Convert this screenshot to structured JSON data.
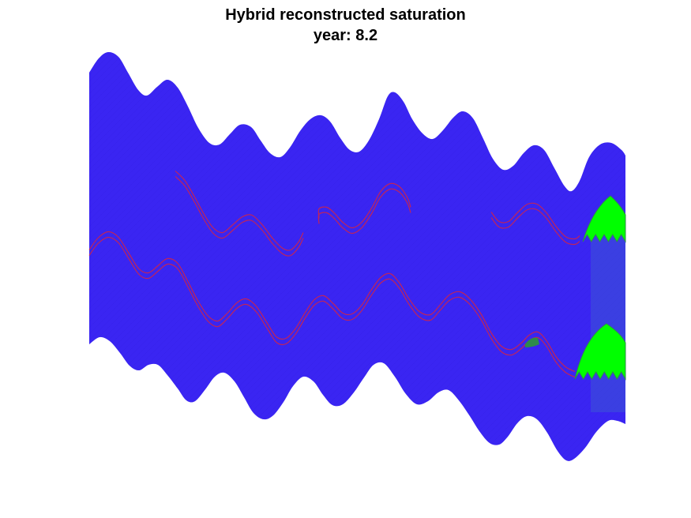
{
  "figure": {
    "title": "Hybrid reconstructed saturation",
    "subtitle_label": "year:",
    "year": "8.2"
  },
  "colors": {
    "background": "#ffffff",
    "grid_fill": "#3a25f2",
    "grid_line": "#2a16d9",
    "fracture_line": "#c0245a",
    "saturation_high": "#00ff00",
    "saturation_edge": "#2e8b4a",
    "water_column": "#3d55d6"
  }
}
